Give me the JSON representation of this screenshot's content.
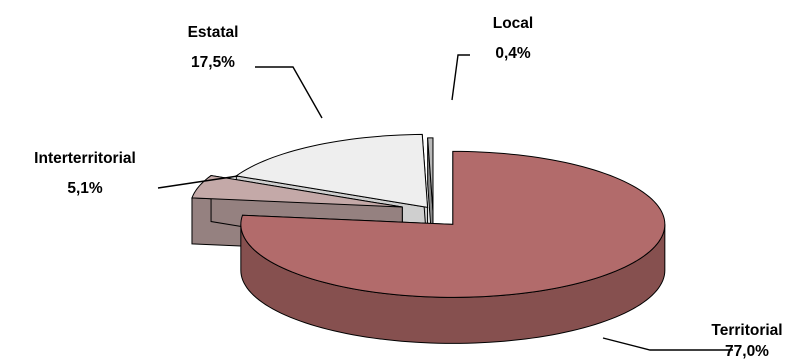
{
  "chart_data": {
    "type": "pie",
    "style": "3d-exploded",
    "title": "",
    "slices": [
      {
        "name": "Territorial",
        "value": 77.0,
        "label": "77,0%",
        "color": "#b26b6b",
        "side_color": "#86504f"
      },
      {
        "name": "Interterritorial",
        "value": 5.1,
        "label": "5,1%",
        "color": "#c4a9a8",
        "side_color": "#958180"
      },
      {
        "name": "Estatal",
        "value": 17.5,
        "label": "17,5%",
        "color": "#eeeeee",
        "side_color": "#cfcfcf"
      },
      {
        "name": "Local",
        "value": 0.4,
        "label": "0,4%",
        "color": "#b9b9b9",
        "side_color": "#8a8a8a"
      }
    ]
  }
}
